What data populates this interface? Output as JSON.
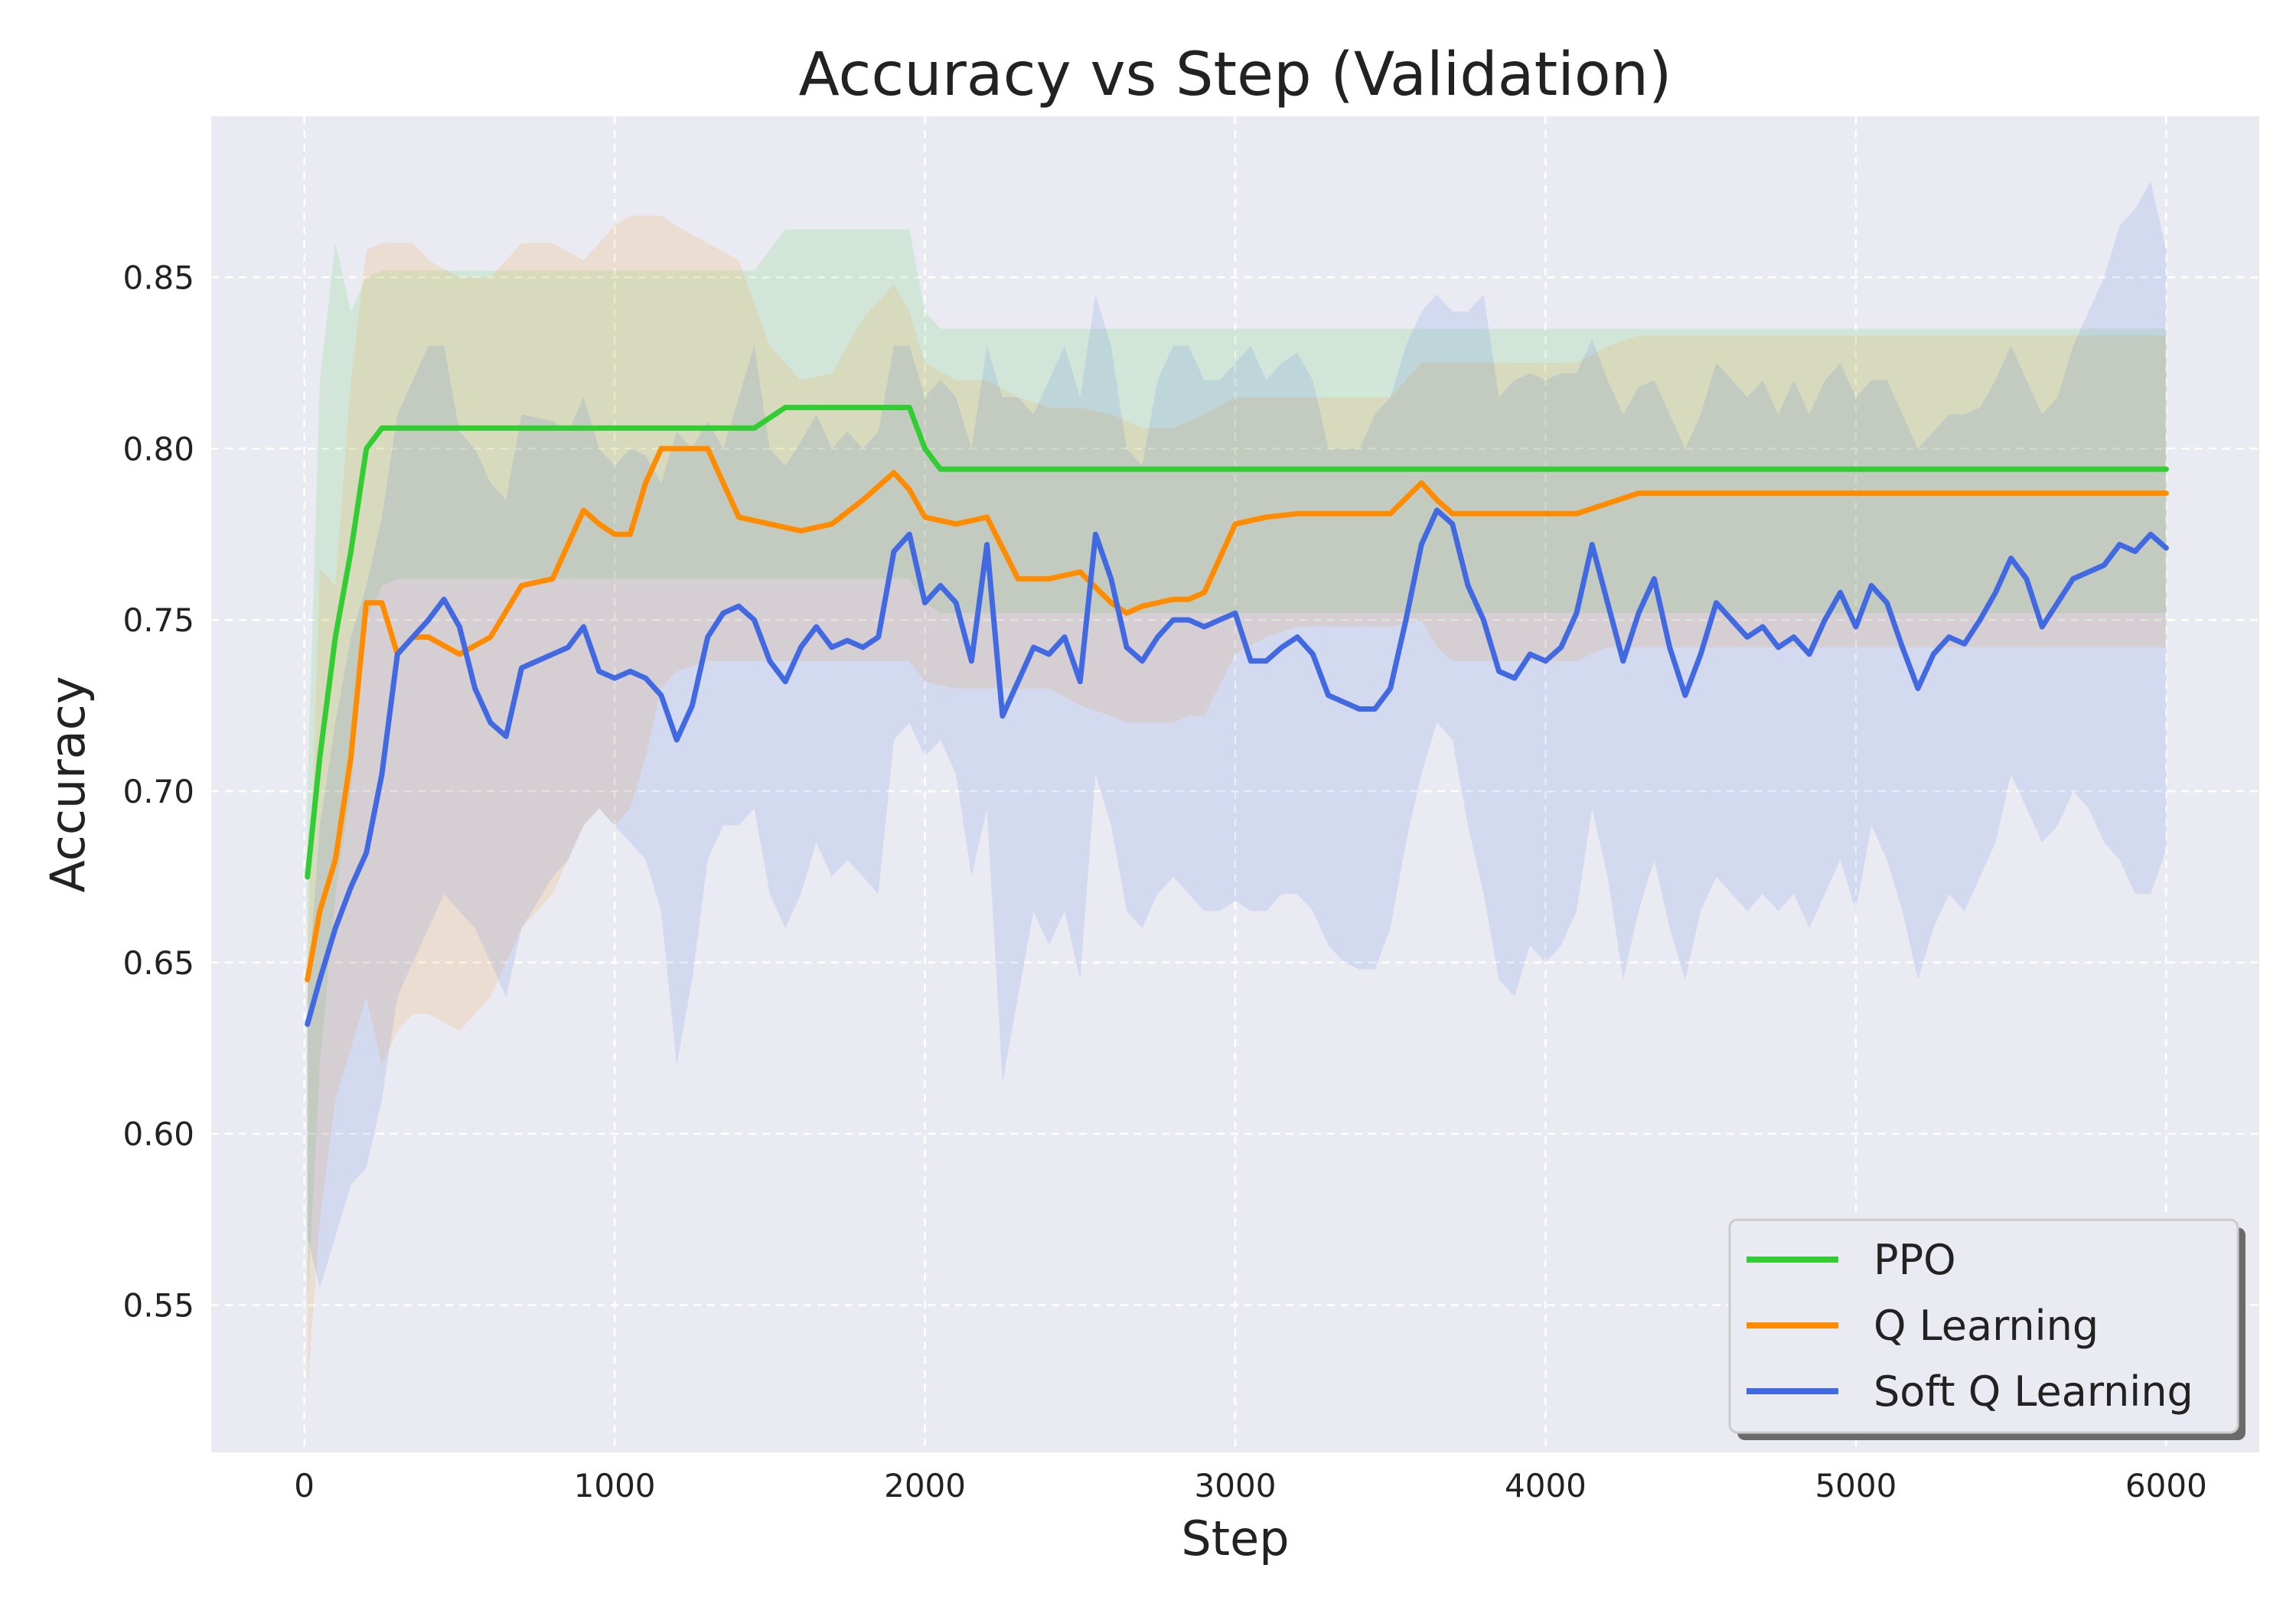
{
  "chart_data": {
    "type": "line",
    "title": "Accuracy vs Step (Validation)",
    "xlabel": "Step",
    "ylabel": "Accuracy",
    "xlim": [
      -300,
      6300
    ],
    "ylim": [
      0.507,
      0.897
    ],
    "xticks": [
      0,
      1000,
      2000,
      3000,
      4000,
      5000,
      6000
    ],
    "yticks": [
      0.55,
      0.6,
      0.65,
      0.7,
      0.75,
      0.8,
      0.85
    ],
    "xtick_labels": [
      "0",
      "1000",
      "2000",
      "3000",
      "4000",
      "5000",
      "6000"
    ],
    "ytick_labels": [
      "0.55",
      "0.60",
      "0.65",
      "0.70",
      "0.75",
      "0.80",
      "0.85"
    ],
    "grid": true,
    "legend_position": "bottom-right",
    "background_color": "#eaeaf2",
    "series": [
      {
        "name": "PPO",
        "color": "#32cd32",
        "x": [
          10,
          50,
          100,
          150,
          200,
          250,
          300,
          500,
          1000,
          1400,
          1450,
          1550,
          1900,
          1950,
          2000,
          2050,
          3000,
          4000,
          5000,
          6000
        ],
        "y": [
          0.675,
          0.71,
          0.745,
          0.77,
          0.8,
          0.806,
          0.806,
          0.806,
          0.806,
          0.806,
          0.806,
          0.812,
          0.812,
          0.812,
          0.8,
          0.794,
          0.794,
          0.794,
          0.794,
          0.794
        ],
        "upper": [
          0.7,
          0.82,
          0.86,
          0.84,
          0.85,
          0.852,
          0.852,
          0.852,
          0.852,
          0.852,
          0.852,
          0.864,
          0.864,
          0.864,
          0.84,
          0.835,
          0.835,
          0.835,
          0.835,
          0.835
        ],
        "lower": [
          0.55,
          0.62,
          0.67,
          0.7,
          0.75,
          0.76,
          0.762,
          0.762,
          0.762,
          0.762,
          0.762,
          0.762,
          0.762,
          0.762,
          0.755,
          0.752,
          0.752,
          0.752,
          0.752,
          0.752
        ]
      },
      {
        "name": "Q Learning",
        "color": "#ff8c00",
        "x": [
          10,
          50,
          100,
          150,
          200,
          250,
          300,
          350,
          400,
          500,
          600,
          700,
          800,
          900,
          950,
          1000,
          1050,
          1100,
          1150,
          1200,
          1300,
          1400,
          1500,
          1600,
          1700,
          1800,
          1900,
          1950,
          2000,
          2100,
          2200,
          2300,
          2400,
          2500,
          2600,
          2650,
          2700,
          2800,
          2850,
          2900,
          3000,
          3100,
          3200,
          3500,
          3600,
          3650,
          3700,
          4100,
          4200,
          4300,
          5000,
          6000
        ],
        "y": [
          0.645,
          0.665,
          0.68,
          0.71,
          0.755,
          0.755,
          0.74,
          0.745,
          0.745,
          0.74,
          0.745,
          0.76,
          0.762,
          0.782,
          0.778,
          0.775,
          0.775,
          0.79,
          0.8,
          0.8,
          0.8,
          0.78,
          0.778,
          0.776,
          0.778,
          0.785,
          0.793,
          0.788,
          0.78,
          0.778,
          0.78,
          0.762,
          0.762,
          0.764,
          0.755,
          0.752,
          0.754,
          0.756,
          0.756,
          0.758,
          0.778,
          0.78,
          0.781,
          0.781,
          0.79,
          0.785,
          0.781,
          0.781,
          0.784,
          0.787,
          0.787,
          0.787
        ],
        "upper": [
          0.65,
          0.765,
          0.76,
          0.82,
          0.858,
          0.86,
          0.86,
          0.86,
          0.855,
          0.85,
          0.85,
          0.86,
          0.86,
          0.855,
          0.86,
          0.865,
          0.868,
          0.868,
          0.868,
          0.865,
          0.86,
          0.855,
          0.83,
          0.82,
          0.822,
          0.838,
          0.848,
          0.84,
          0.825,
          0.82,
          0.82,
          0.815,
          0.812,
          0.812,
          0.81,
          0.808,
          0.806,
          0.806,
          0.808,
          0.81,
          0.815,
          0.815,
          0.815,
          0.815,
          0.825,
          0.825,
          0.825,
          0.825,
          0.83,
          0.833,
          0.833,
          0.833
        ],
        "lower": [
          0.525,
          0.575,
          0.61,
          0.625,
          0.64,
          0.62,
          0.63,
          0.635,
          0.635,
          0.63,
          0.64,
          0.66,
          0.67,
          0.69,
          0.695,
          0.69,
          0.695,
          0.71,
          0.73,
          0.735,
          0.738,
          0.738,
          0.738,
          0.738,
          0.738,
          0.738,
          0.738,
          0.738,
          0.732,
          0.73,
          0.73,
          0.73,
          0.73,
          0.725,
          0.722,
          0.72,
          0.72,
          0.72,
          0.722,
          0.722,
          0.74,
          0.745,
          0.748,
          0.748,
          0.75,
          0.742,
          0.738,
          0.738,
          0.742,
          0.742,
          0.742,
          0.742
        ]
      },
      {
        "name": "Soft Q Learning",
        "color": "#4169e1",
        "x": [
          10,
          50,
          100,
          150,
          200,
          250,
          300,
          350,
          400,
          450,
          500,
          550,
          600,
          650,
          700,
          800,
          850,
          900,
          950,
          1000,
          1050,
          1100,
          1150,
          1200,
          1250,
          1300,
          1350,
          1400,
          1450,
          1500,
          1550,
          1600,
          1650,
          1700,
          1750,
          1800,
          1850,
          1900,
          1950,
          2000,
          2050,
          2100,
          2150,
          2200,
          2250,
          2300,
          2350,
          2400,
          2450,
          2500,
          2550,
          2600,
          2650,
          2700,
          2750,
          2800,
          2850,
          2900,
          2950,
          3000,
          3050,
          3100,
          3150,
          3200,
          3250,
          3300,
          3350,
          3400,
          3450,
          3500,
          3550,
          3600,
          3650,
          3700,
          3750,
          3800,
          3850,
          3900,
          3950,
          4000,
          4050,
          4100,
          4150,
          4200,
          4250,
          4300,
          4350,
          4400,
          4450,
          4500,
          4550,
          4600,
          4650,
          4700,
          4750,
          4800,
          4850,
          4900,
          4950,
          5000,
          5050,
          5100,
          5150,
          5200,
          5250,
          5300,
          5350,
          5400,
          5450,
          5500,
          5550,
          5600,
          5650,
          5700,
          5750,
          5800,
          5850,
          5900,
          5950,
          6000
        ],
        "y": [
          0.632,
          0.645,
          0.66,
          0.672,
          0.682,
          0.705,
          0.74,
          0.745,
          0.75,
          0.756,
          0.748,
          0.73,
          0.72,
          0.716,
          0.736,
          0.74,
          0.742,
          0.748,
          0.735,
          0.733,
          0.735,
          0.733,
          0.728,
          0.715,
          0.725,
          0.745,
          0.752,
          0.754,
          0.75,
          0.738,
          0.732,
          0.742,
          0.748,
          0.742,
          0.744,
          0.742,
          0.745,
          0.77,
          0.775,
          0.755,
          0.76,
          0.755,
          0.738,
          0.772,
          0.722,
          0.732,
          0.742,
          0.74,
          0.745,
          0.732,
          0.775,
          0.762,
          0.742,
          0.738,
          0.745,
          0.75,
          0.75,
          0.748,
          0.75,
          0.752,
          0.738,
          0.738,
          0.742,
          0.745,
          0.74,
          0.728,
          0.726,
          0.724,
          0.724,
          0.73,
          0.75,
          0.772,
          0.782,
          0.778,
          0.76,
          0.75,
          0.735,
          0.733,
          0.74,
          0.738,
          0.742,
          0.752,
          0.772,
          0.755,
          0.738,
          0.752,
          0.762,
          0.742,
          0.728,
          0.74,
          0.755,
          0.75,
          0.745,
          0.748,
          0.742,
          0.745,
          0.74,
          0.75,
          0.758,
          0.748,
          0.76,
          0.755,
          0.742,
          0.73,
          0.74,
          0.745,
          0.743,
          0.75,
          0.758,
          0.768,
          0.762,
          0.748,
          0.755,
          0.762,
          0.764,
          0.766,
          0.772,
          0.77,
          0.775,
          0.771
        ],
        "upper": [
          0.64,
          0.69,
          0.72,
          0.745,
          0.76,
          0.78,
          0.81,
          0.82,
          0.83,
          0.83,
          0.805,
          0.8,
          0.79,
          0.785,
          0.81,
          0.808,
          0.805,
          0.815,
          0.8,
          0.795,
          0.8,
          0.798,
          0.79,
          0.805,
          0.8,
          0.808,
          0.8,
          0.815,
          0.83,
          0.8,
          0.795,
          0.802,
          0.81,
          0.8,
          0.805,
          0.8,
          0.805,
          0.83,
          0.83,
          0.815,
          0.82,
          0.815,
          0.8,
          0.83,
          0.815,
          0.815,
          0.81,
          0.82,
          0.83,
          0.815,
          0.845,
          0.83,
          0.8,
          0.795,
          0.82,
          0.83,
          0.83,
          0.82,
          0.82,
          0.825,
          0.83,
          0.82,
          0.825,
          0.828,
          0.82,
          0.8,
          0.8,
          0.8,
          0.81,
          0.815,
          0.83,
          0.84,
          0.845,
          0.84,
          0.84,
          0.845,
          0.815,
          0.82,
          0.822,
          0.82,
          0.822,
          0.822,
          0.832,
          0.82,
          0.81,
          0.818,
          0.82,
          0.81,
          0.8,
          0.81,
          0.825,
          0.82,
          0.815,
          0.82,
          0.81,
          0.82,
          0.81,
          0.82,
          0.825,
          0.815,
          0.82,
          0.82,
          0.81,
          0.8,
          0.805,
          0.81,
          0.81,
          0.812,
          0.82,
          0.83,
          0.82,
          0.81,
          0.815,
          0.83,
          0.84,
          0.85,
          0.865,
          0.87,
          0.878,
          0.858
        ],
        "lower": [
          0.57,
          0.555,
          0.57,
          0.585,
          0.59,
          0.61,
          0.64,
          0.65,
          0.66,
          0.67,
          0.665,
          0.66,
          0.65,
          0.64,
          0.66,
          0.675,
          0.68,
          0.69,
          0.695,
          0.69,
          0.685,
          0.68,
          0.665,
          0.62,
          0.645,
          0.68,
          0.69,
          0.69,
          0.695,
          0.67,
          0.66,
          0.67,
          0.685,
          0.675,
          0.68,
          0.675,
          0.67,
          0.715,
          0.72,
          0.71,
          0.715,
          0.705,
          0.675,
          0.695,
          0.615,
          0.64,
          0.665,
          0.655,
          0.665,
          0.645,
          0.705,
          0.69,
          0.665,
          0.66,
          0.67,
          0.675,
          0.67,
          0.665,
          0.665,
          0.668,
          0.665,
          0.665,
          0.67,
          0.67,
          0.665,
          0.655,
          0.65,
          0.648,
          0.648,
          0.66,
          0.685,
          0.705,
          0.72,
          0.715,
          0.69,
          0.67,
          0.645,
          0.64,
          0.655,
          0.65,
          0.655,
          0.665,
          0.695,
          0.675,
          0.645,
          0.665,
          0.68,
          0.66,
          0.645,
          0.665,
          0.675,
          0.67,
          0.665,
          0.67,
          0.665,
          0.67,
          0.66,
          0.67,
          0.68,
          0.665,
          0.69,
          0.68,
          0.665,
          0.645,
          0.66,
          0.67,
          0.665,
          0.675,
          0.685,
          0.705,
          0.695,
          0.685,
          0.69,
          0.7,
          0.695,
          0.685,
          0.68,
          0.67,
          0.67,
          0.683
        ]
      }
    ]
  }
}
